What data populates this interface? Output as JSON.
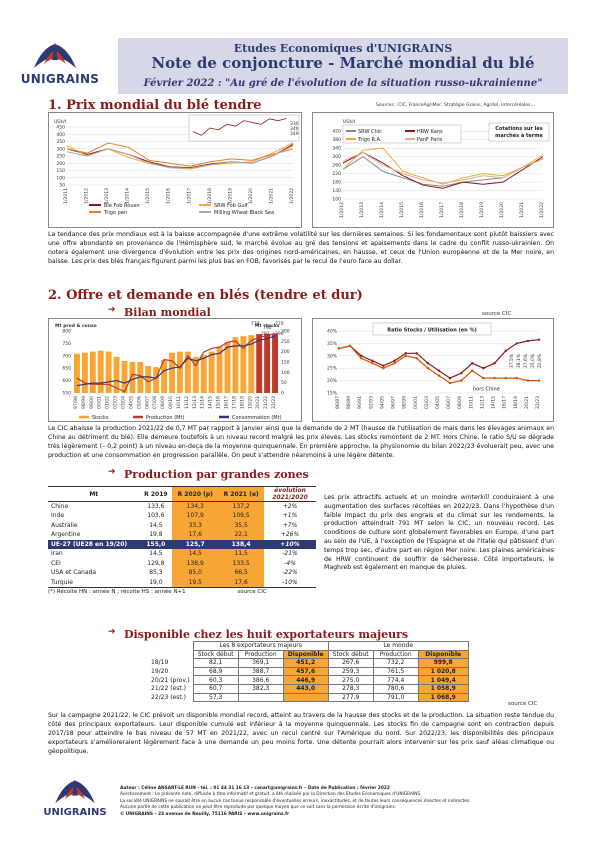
{
  "logo": {
    "text": "UNIGRAINS"
  },
  "header": {
    "line1": "Etudes Economiques d'UNIGRAINS",
    "line2": "Note de conjoncture - Marché mondial du blé",
    "line3": "Février 2022 : \"Au gré de l'évolution de la situation russo-ukrainienne\""
  },
  "section1": {
    "title": "1. Prix mondial du blé tendre",
    "sources": "Sources : CIC, FranceAgriMer, Stratégie Grains, Agritel, Intercéréales…",
    "chart_left": {
      "unit": "US$/t",
      "legend": [
        "Blé Fob Rouen",
        "SRW Fob Gulf",
        "Trigo pan",
        "Milling Wheat Black Sea"
      ]
    },
    "chart_right": {
      "unit": "US$/t",
      "note": "Cotations sur les marchés à terme",
      "legend": [
        "SRW Chic",
        "HRW Kans",
        "Trigo R.A.",
        "PanF Paris"
      ]
    },
    "text": "La tendance des prix mondiaux est à la baisse accompagnée d'une extrême volatilité sur les dernières semaines. Si les fondamentaux sont plutôt baissiers avec une offre abondante en provenance de l'Hémisphère sud, le marché évolue au gré des tensions et apaisements dans le cadre du conflit russo-ukrainien. On notera également une divergence d'évolution entre les prix des origines nord-américaines, en hausse, et ceux de l'Union européenne et de la Mer noire, en baisse. Les prix des blés français figurent parmi les plus bas en FOB, favorisés par le recul de l'euro face au dollar."
  },
  "section2": {
    "title": "2. Offre et demande en blés (tendre et dur)",
    "source": "source CIC",
    "bilan_title": "Bilan mondial",
    "ratio_title": "Ratio Stocks / Utilisation (en %)",
    "hors_chine": "hors Chine",
    "text": "Le CIC abaisse la production 2021/22 de 0,7 MT par rapport à janvier ainsi que la demande de 2 MT (hausse de l'utilisation de mais dans les élevages animaux en Chine au détriment du blé). Elle demeure toutefois à un niveau record malgré les prix élevés. Les stocks remontent de 2 MT. Hors Chine, le ratio S/U se dégrade très légèrement (– 0,2 point) à un niveau en-deça de la moyenne quinquennale. En première approche, la physionomie du bilan 2022/23 évoluerait peu, avec une production et une consommation en progression parallèle. On peut s'attendre néanmoins à une légère détente."
  },
  "chart_data": [
    {
      "type": "bar",
      "title": "Bilan mondial",
      "ylabel": "Mt prod & conso",
      "y2label": "Mt stocks",
      "ylim": [
        0,
        800
      ],
      "y2lim": [
        0,
        300
      ],
      "categories": [
        "97/98",
        "98/99",
        "99/00",
        "00/01",
        "01/02",
        "02/03",
        "03/04",
        "04/05",
        "05/06",
        "06/07",
        "07/08",
        "08/09",
        "09/10",
        "10/11",
        "11/12",
        "12/13",
        "13/14",
        "14/15",
        "15/16",
        "16/17",
        "17/18",
        "18/19",
        "19/20",
        "20/21",
        "21/22",
        "22/23"
      ],
      "series": [
        {
          "name": "Stocks",
          "values": [
            190,
            195,
            200,
            205,
            200,
            175,
            155,
            150,
            150,
            130,
            125,
            160,
            195,
            200,
            200,
            175,
            185,
            200,
            225,
            245,
            270,
            275,
            280,
            285,
            287,
            288
          ]
        },
        {
          "name": "Production (Mt)",
          "values": [
            610,
            590,
            585,
            585,
            585,
            570,
            555,
            625,
            620,
            595,
            610,
            685,
            680,
            650,
            700,
            660,
            715,
            730,
            735,
            755,
            760,
            730,
            762,
            774,
            781,
            790
          ]
        },
        {
          "name": "Consommation (Mt)",
          "values": [
            580,
            585,
            590,
            590,
            595,
            600,
            590,
            605,
            615,
            615,
            610,
            640,
            650,
            655,
            690,
            680,
            690,
            705,
            710,
            735,
            740,
            740,
            747,
            763,
            769,
            780
          ]
        }
      ],
      "annotations": [
        "778",
        "790",
        "770",
        "291",
        "290"
      ]
    },
    {
      "type": "line",
      "title": "Ratio Stocks / Utilisation (en %)",
      "ylim": [
        15,
        40
      ],
      "x": [
        "86/87",
        "88/89",
        "90/91",
        "92/93",
        "94/95",
        "96/97",
        "98/99",
        "00/01",
        "02/03",
        "04/05",
        "06/07",
        "08/09",
        "10/11",
        "12/13",
        "14/15",
        "16/17",
        "18/19",
        "20/21",
        "22/23"
      ],
      "series": [
        {
          "name": "Ratio",
          "values": [
            33,
            34,
            30,
            28,
            26,
            28,
            31,
            31,
            27,
            24,
            21,
            23,
            27,
            25,
            27,
            32,
            35,
            36,
            36.5
          ]
        },
        {
          "name": "hors Chine",
          "values": [
            33,
            34,
            29,
            27,
            25,
            27,
            30,
            29,
            25,
            22,
            19,
            20,
            24,
            21,
            21,
            21,
            21,
            20,
            20
          ]
        }
      ],
      "annotations": [
        "37,5%",
        "38,1%",
        "37,6%",
        "35,0%",
        "20,8%"
      ]
    },
    {
      "type": "line",
      "title": "Prix mondial du blé tendre (FOB)",
      "ylabel": "US$/t",
      "ylim": [
        50,
        450
      ],
      "x": [
        "1/2011",
        "1/2012",
        "1/2013",
        "1/2014",
        "1/2015",
        "1/2016",
        "1/2017",
        "1/2018",
        "1/2019",
        "1/2020",
        "1/2021",
        "1/2022"
      ],
      "series": [
        {
          "name": "Blé Fob Rouen",
          "values": [
            300,
            260,
            300,
            260,
            210,
            175,
            170,
            195,
            210,
            200,
            250,
            330
          ]
        },
        {
          "name": "SRW Fob Gulf",
          "values": [
            320,
            250,
            300,
            240,
            200,
            170,
            160,
            190,
            200,
            210,
            270,
            340
          ]
        },
        {
          "name": "Trigo pan",
          "values": [
            300,
            270,
            340,
            310,
            220,
            200,
            180,
            210,
            230,
            220,
            260,
            300
          ]
        },
        {
          "name": "Milling Wheat Black Sea",
          "values": [
            280,
            250,
            300,
            260,
            200,
            170,
            165,
            190,
            210,
            200,
            250,
            320
          ]
        }
      ],
      "annotations": [
        "330",
        "346",
        "349"
      ]
    },
    {
      "type": "line",
      "title": "Cotations sur les marchés à terme",
      "ylabel": "US$/t",
      "ylim": [
        100,
        440
      ],
      "x": [
        "1/2012",
        "1/2013",
        "1/2014",
        "1/2015",
        "1/2016",
        "1/2017",
        "1/2018",
        "1/2019",
        "1/2020",
        "1/2021",
        "1/2022"
      ],
      "series": [
        {
          "name": "SRW Chic",
          "values": [
            240,
            300,
            230,
            200,
            170,
            160,
            180,
            190,
            200,
            250,
            290
          ]
        },
        {
          "name": "HRW Kans",
          "values": [
            270,
            320,
            270,
            210,
            165,
            150,
            180,
            170,
            180,
            240,
            300
          ]
        },
        {
          "name": "Trigo R.A.",
          "values": [
            240,
            330,
            340,
            230,
            200,
            170,
            200,
            220,
            210,
            250,
            290
          ]
        },
        {
          "name": "PanF Paris",
          "values": [
            280,
            320,
            260,
            220,
            190,
            175,
            190,
            210,
            200,
            250,
            310
          ]
        }
      ]
    }
  ],
  "zones": {
    "title": "Production par grandes zones",
    "header": [
      "Mt",
      "R 2019",
      "R 2020 (p)",
      "R 2021 (e)",
      "évolution 2021/2020"
    ],
    "rows": [
      [
        "Chine",
        "133,6",
        "134,3",
        "137,2",
        "+2%"
      ],
      [
        "Inde",
        "103,6",
        "107,9",
        "109,5",
        "+1%"
      ],
      [
        "Australie",
        "14,5",
        "33,3",
        "35,5",
        "+7%"
      ],
      [
        "Argentine",
        "19,8",
        "17,6",
        "22,1",
        "+26%"
      ],
      [
        "UE-27 (UE28 en 19/20)",
        "155,0",
        "125,7",
        "138,4",
        "+10%"
      ],
      [
        "Iran",
        "14,5",
        "14,5",
        "11,5",
        "-21%"
      ],
      [
        "CEI",
        "129,8",
        "138,9",
        "133,5",
        "-4%"
      ],
      [
        "USA et Canada",
        "85,3",
        "85,0",
        "66,5",
        "-22%"
      ],
      [
        "Turquie",
        "19,0",
        "19,5",
        "17,6",
        "-10%"
      ]
    ],
    "footnote": "(*) Récolte HN : année N ; récolte HS : année N+1",
    "source": "source CIC",
    "text_a": "Les prix attractifs actuels et un moindre ",
    "text_em": "winterkill",
    "text_b": " conduiraient à une augmentation des surfaces récoltées en 2022/23. Dans l'hypothèse d'un faible impact du prix des engrais et du climat sur les rendements, la production atteindrait 791 MT selon le CIC, un nouveau record. Les conditions de culture sont globalement favorables en Europe, d'une part au sein de l'UE, à l'exception de l'Espagne et de l'Italie qui pâtissent d'un temps trop sec, d'autre part en région Mer noire. Les plaines américaines de HRW continuent de souffrir de sécheresse. Côté importateurs, le Maghreb est également en manque de pluies."
  },
  "dispo": {
    "title": "Disponible chez les huit exportateurs majeurs",
    "group1": "Les 8 exportateurs majeurs",
    "group2": "Le monde",
    "cols": [
      "Stock début",
      "Production",
      "Disponible",
      "Stock début",
      "Production",
      "Disponible"
    ],
    "rows": [
      [
        "18/19",
        "82,1",
        "369,1",
        "451,2",
        "267,6",
        "732,2",
        "999,8"
      ],
      [
        "19/20",
        "68,9",
        "388,7",
        "457,6",
        "259,3",
        "761,5",
        "1 020,8"
      ],
      [
        "20/21 (prov.)",
        "60,3",
        "386,6",
        "446,9",
        "275,0",
        "774,4",
        "1 049,4"
      ],
      [
        "21/22 (est.)",
        "60,7",
        "382,3",
        "443,0",
        "278,3",
        "780,6",
        "1 058,9"
      ],
      [
        "22/23 (est.)",
        "57,3",
        "",
        "",
        "277,9",
        "791,0",
        "1 068,9"
      ]
    ],
    "source": "source CIC",
    "text": "Sur la campagne 2021/22, le CIC prévoit un disponible mondial record, atteint au travers de la hausse des stocks et de la production. La situation reste tendue du côté des principaux exportateurs. Leur disponible cumulé est inférieur à la moyenne quinquennale. Les stocks fin de campagne sont en contraction depuis 2017/18 pour atteindre le bas niveau de 57 MT en 2021/22, avec un recul centré sur l'Amérique du nord. Sur 2022/23, les disponibilités des principaux exportateurs s'amélioreraient légèrement face à une demande un peu moins forte. Une détente pourrait alors intervenir sur les prix sauf aléas climatique ou géopolitique."
  },
  "footer": {
    "line1": "Auteur : Céline ANSART-LE RUN - tél. : 01 44 31 16 13 – canart@unigrains.fr – Date de Publication : février 2022",
    "line2": "Avertissement : Le présente note, diffusée à titre informatif et gratuit, a été réalisée par la Direction des Etudes Economiques d'UNIGRAINS.",
    "line3": "La société UNIGRAINS ne saurait être en aucun cas tenue responsable d'éventuelles erreurs, inexactitudes, et de toutes leurs conséquences directes et indirectes.",
    "line4": "Aucune partie de cette publication ne peut être reproduite par quelque moyen que ce soit sans la permission écrite d'Unigrains.",
    "line5": "© UNIGRAINS – 23 avenue de Neuilly, 75116 PARIS – www.unigrains.fr",
    "logo": "UNIGRAINS"
  },
  "colors": {
    "navy": "#2f3a72",
    "orange": "#f7a535",
    "darkred": "#8b1a1a",
    "red": "#c0392b"
  }
}
